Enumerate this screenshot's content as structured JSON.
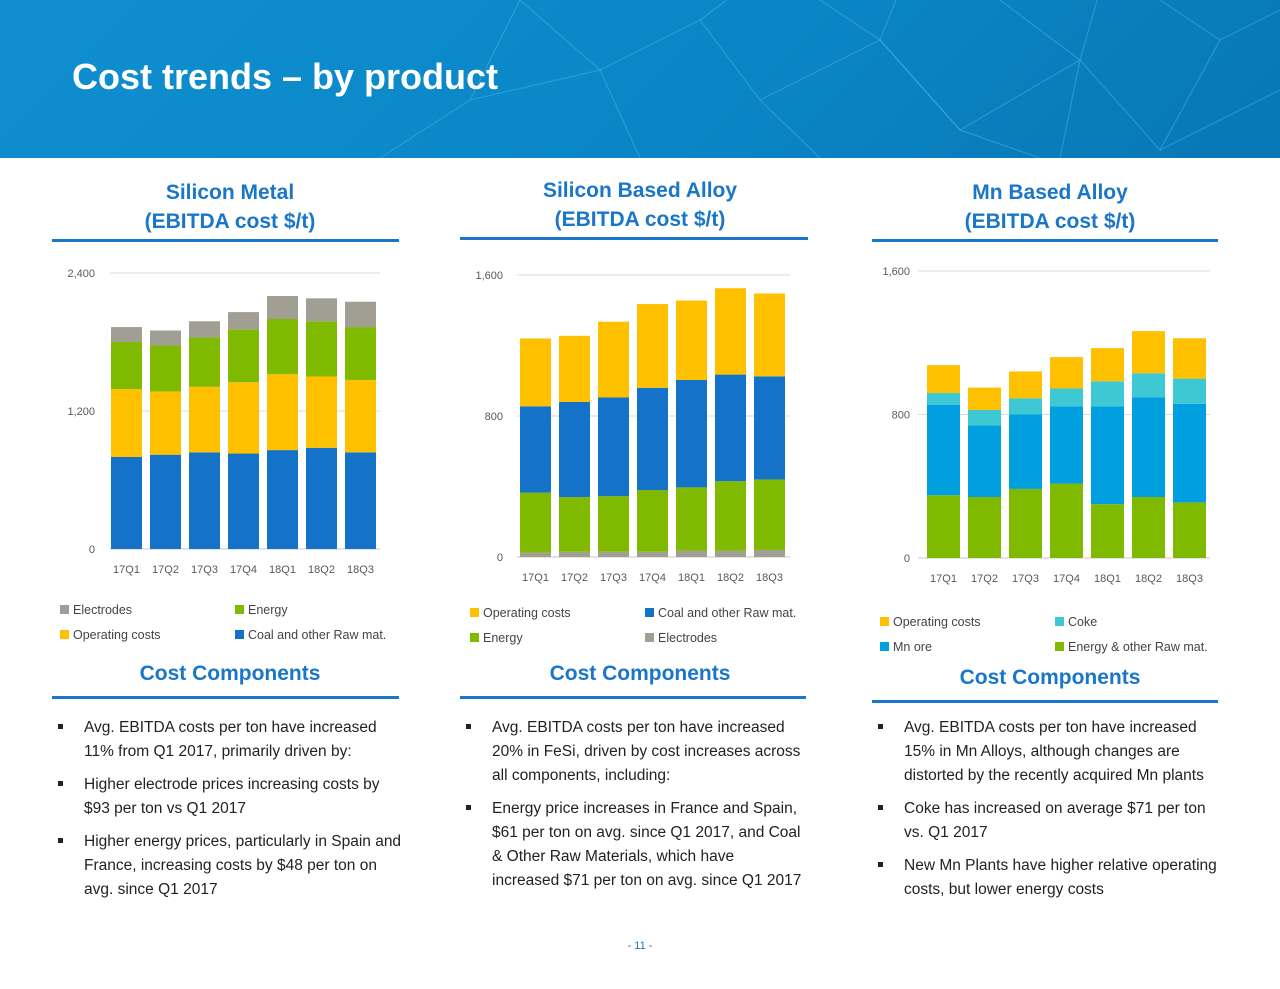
{
  "header": {
    "title": "Cost trends – by product"
  },
  "columns": [
    {
      "title_line1": "Silicon Metal",
      "title_line2": "(EBITDA cost $/t)",
      "components_title": "Cost Components",
      "bullets": [
        "Avg. EBITDA costs per ton have increased 11% from Q1 2017, primarily driven by:",
        "Higher electrode prices increasing costs by $93 per ton vs Q1 2017",
        "Higher energy prices, particularly in Spain and France, increasing costs by $48 per ton on avg. since Q1 2017"
      ]
    },
    {
      "title_line1": "Silicon Based Alloy",
      "title_line2": "(EBITDA cost $/t)",
      "components_title": "Cost Components",
      "bullets": [
        "Avg. EBITDA costs per ton have increased 20% in FeSi, driven by cost increases across all components, including:",
        "Energy price increases in France and Spain, $61 per ton on avg. since Q1 2017, and Coal & Other Raw Materials, which have increased $71 per ton on avg. since Q1 2017"
      ]
    },
    {
      "title_line1": "Mn Based Alloy",
      "title_line2": "(EBITDA cost $/t)",
      "components_title": "Cost Components",
      "bullets": [
        "Avg. EBITDA costs per ton have increased 15% in Mn Alloys, although changes are distorted by the recently acquired Mn plants",
        "Coke has increased on average $71 per ton vs. Q1 2017",
        "New Mn Plants have higher relative operating costs, but lower energy costs"
      ]
    }
  ],
  "chart_data": [
    {
      "type": "bar",
      "stacked": true,
      "categories": [
        "17Q1",
        "17Q2",
        "17Q3",
        "17Q4",
        "18Q1",
        "18Q2",
        "18Q3"
      ],
      "ylim": [
        0,
        2400
      ],
      "yticks": [
        0,
        1200,
        2400
      ],
      "ytick_labels": [
        "0",
        "1,200",
        "2,400"
      ],
      "grid": true,
      "legend_order": [
        "Electrodes",
        "Energy",
        "Operating costs",
        "Coal and other Raw mat."
      ],
      "series": [
        {
          "name": "Coal and other Raw mat.",
          "color": "#1472c8",
          "values": [
            800,
            820,
            840,
            830,
            860,
            880,
            840
          ]
        },
        {
          "name": "Operating costs",
          "color": "#ffc000",
          "values": [
            590,
            550,
            570,
            620,
            660,
            620,
            630
          ]
        },
        {
          "name": "Energy",
          "color": "#7fba00",
          "values": [
            410,
            400,
            430,
            460,
            480,
            480,
            460
          ]
        },
        {
          "name": "Electrodes",
          "color": "#a19e93",
          "values": [
            130,
            130,
            140,
            150,
            200,
            200,
            220
          ]
        }
      ]
    },
    {
      "type": "bar",
      "stacked": true,
      "categories": [
        "17Q1",
        "17Q2",
        "17Q3",
        "17Q4",
        "18Q1",
        "18Q2",
        "18Q3"
      ],
      "ylim": [
        0,
        1600
      ],
      "yticks": [
        0,
        800,
        1600
      ],
      "ytick_labels": [
        "0",
        "800",
        "1,600"
      ],
      "grid": true,
      "legend_order": [
        "Operating costs",
        "Coal and other Raw mat.",
        "Energy",
        "Electrodes"
      ],
      "series": [
        {
          "name": "Electrodes",
          "color": "#a19e93",
          "values": [
            25,
            30,
            30,
            30,
            35,
            35,
            40
          ]
        },
        {
          "name": "Energy",
          "color": "#7fba00",
          "values": [
            340,
            310,
            315,
            350,
            360,
            395,
            400
          ]
        },
        {
          "name": "Coal and other Raw mat.",
          "color": "#1472c8",
          "values": [
            490,
            540,
            560,
            580,
            610,
            605,
            585
          ]
        },
        {
          "name": "Operating costs",
          "color": "#ffc000",
          "values": [
            385,
            375,
            430,
            475,
            450,
            490,
            470
          ]
        }
      ]
    },
    {
      "type": "bar",
      "stacked": true,
      "categories": [
        "17Q1",
        "17Q2",
        "17Q3",
        "17Q4",
        "18Q1",
        "18Q2",
        "18Q3"
      ],
      "ylim": [
        0,
        1600
      ],
      "yticks": [
        0,
        800,
        1600
      ],
      "ytick_labels": [
        "0",
        "800",
        "1,600"
      ],
      "grid": true,
      "legend_order": [
        "Operating costs",
        "Coke",
        "Mn ore",
        "Energy & other Raw mat."
      ],
      "series": [
        {
          "name": "Energy & other Raw mat.",
          "color": "#7fba00",
          "values": [
            350,
            340,
            385,
            415,
            300,
            340,
            310
          ]
        },
        {
          "name": "Mn ore",
          "color": "#00a0e0",
          "values": [
            505,
            400,
            415,
            430,
            545,
            555,
            550
          ]
        },
        {
          "name": "Coke",
          "color": "#3ec8d4",
          "values": [
            65,
            85,
            90,
            100,
            140,
            135,
            140
          ]
        },
        {
          "name": "Operating costs",
          "color": "#ffc000",
          "values": [
            155,
            125,
            150,
            175,
            185,
            235,
            225
          ]
        }
      ]
    }
  ],
  "footer": {
    "page_number": "- 11 -"
  }
}
